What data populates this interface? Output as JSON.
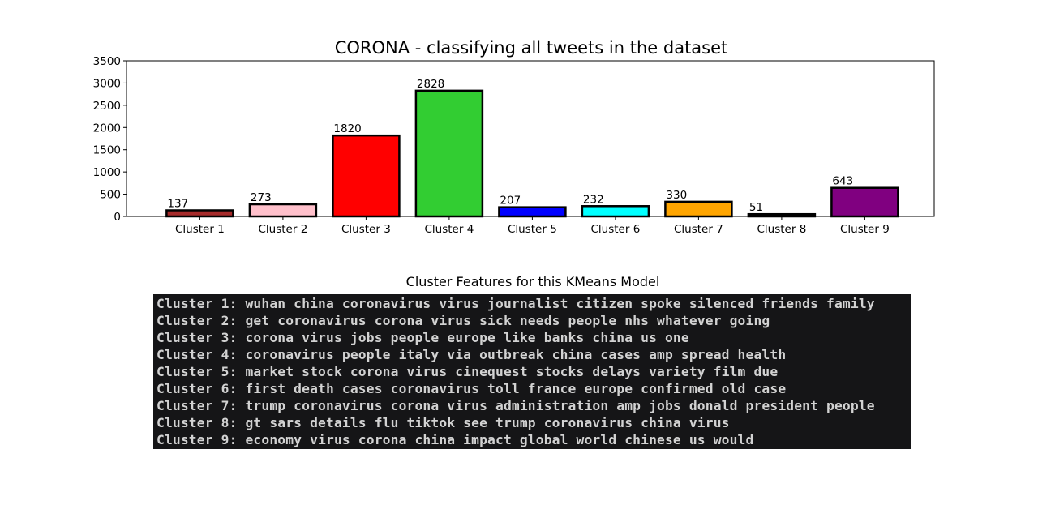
{
  "chart_data": {
    "type": "bar",
    "title": "CORONA - classifying all tweets in the dataset",
    "xlabel": "",
    "ylabel": "",
    "categories": [
      "Cluster 1",
      "Cluster 2",
      "Cluster 3",
      "Cluster 4",
      "Cluster 5",
      "Cluster 6",
      "Cluster 7",
      "Cluster 8",
      "Cluster 9"
    ],
    "values": [
      137,
      273,
      1820,
      2828,
      207,
      232,
      330,
      51,
      643
    ],
    "colors": [
      "#a52a2a",
      "#ffc0cb",
      "#ff0000",
      "#32cd32",
      "#0000ff",
      "#00ffff",
      "#ffa500",
      "#000000",
      "#800080"
    ],
    "edge_color": "#000000",
    "ylim": [
      0,
      3500
    ],
    "yticks": [
      0,
      500,
      1000,
      1500,
      2000,
      2500,
      3000,
      3500
    ],
    "grid": false,
    "legend": "none",
    "data_labels": true
  },
  "features_panel": {
    "title": "Cluster Features for this KMeans Model",
    "background": "#151517",
    "text_color": "#d2d2d2",
    "lines": [
      "Cluster 1: wuhan china coronavirus virus journalist citizen spoke silenced friends family",
      "Cluster 2: get coronavirus corona virus sick needs people nhs whatever going",
      "Cluster 3: corona virus jobs people europe like banks china us one",
      "Cluster 4: coronavirus people italy via outbreak china cases amp spread health",
      "Cluster 5: market stock corona virus cinequest stocks delays variety film due",
      "Cluster 6: first death cases coronavirus toll france europe confirmed old case",
      "Cluster 7: trump coronavirus corona virus administration amp jobs donald president people",
      "Cluster 8: gt sars details flu tiktok see trump coronavirus china virus",
      "Cluster 9: economy virus corona china impact global world chinese us would"
    ]
  }
}
